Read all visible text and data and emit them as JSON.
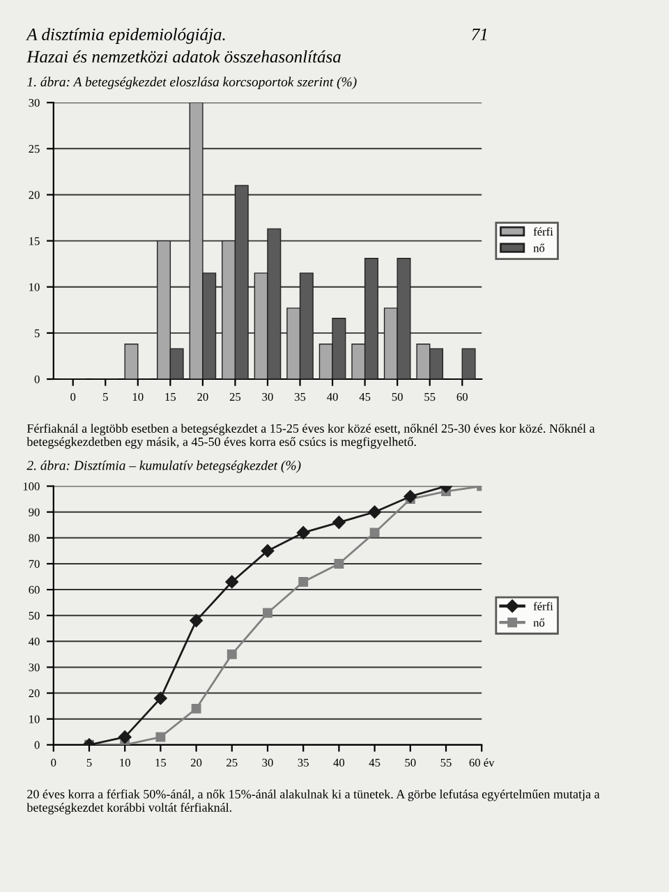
{
  "chart_data": [
    {
      "type": "bar",
      "title": "1. ábra: A betegségkezdet eloszlása korcsoportok szerint (%)",
      "annotations": [
        "A disztímia epidemiológiája.",
        "Hazai és nemzetközi adatok összehasonlítása",
        "71",
        "Férfiaknál a legtöbb esetben a betegségkezdet a 15-25 éves kor közé esett, nőknél 25-30 éves kor közé. Nőknél a betegségkezdetben egy másik, a 45-50 éves korra eső csúcs is megfigyelhető."
      ],
      "categories": [
        "0",
        "5",
        "10",
        "15",
        "20",
        "25",
        "30",
        "35",
        "40",
        "45",
        "50",
        "55",
        "60"
      ],
      "series": [
        {
          "name": "férfi",
          "color": "#a8a8a8",
          "values": [
            null,
            null,
            3.8,
            15,
            30,
            15,
            11.5,
            7.7,
            3.8,
            3.8,
            7.7,
            3.8,
            null
          ]
        },
        {
          "name": "nő",
          "color": "#5a5a5a",
          "values": [
            null,
            null,
            null,
            3.3,
            11.5,
            21,
            16.3,
            11.5,
            6.6,
            13.1,
            13.1,
            3.3,
            3.3
          ]
        }
      ],
      "ylim": [
        0,
        30
      ],
      "yticks": [
        0,
        5,
        10,
        15,
        20,
        25,
        30
      ],
      "grid": "y",
      "legend": "right"
    },
    {
      "type": "line",
      "title": "2. ábra: Disztímia – kumulatív betegségkezdet (%)",
      "annotations": [
        "20 éves korra a férfiak 50%-ánál, a nők 15%-ánál alakulnak ki a tünetek. A görbe lefutása egyértelműen mutatja a betegségkezdet korábbi voltát férfiaknál."
      ],
      "series": [
        {
          "name": "férfi",
          "color": "#1a1a1a",
          "marker": "diamond",
          "x": [
            5,
            10,
            15,
            20,
            25,
            30,
            35,
            40,
            45,
            50,
            55
          ],
          "values": [
            0,
            3,
            18,
            48,
            63,
            75,
            82,
            86,
            90,
            96,
            100
          ]
        },
        {
          "name": "nő",
          "color": "#808080",
          "marker": "square",
          "x": [
            5,
            10,
            15,
            20,
            25,
            30,
            35,
            40,
            45,
            50,
            55,
            60
          ],
          "values": [
            0,
            0,
            3,
            14,
            35,
            51,
            63,
            70,
            82,
            95,
            98,
            100
          ]
        }
      ],
      "xlim": [
        0,
        60
      ],
      "xticks": [
        0,
        5,
        10,
        15,
        20,
        25,
        30,
        35,
        40,
        45,
        50,
        55,
        {
          "value": 60,
          "label": "60 év"
        }
      ],
      "ylim": [
        0,
        100
      ],
      "yticks": [
        0,
        10,
        20,
        30,
        40,
        50,
        60,
        70,
        80,
        90,
        100
      ],
      "grid": "y",
      "legend": "right",
      "line_style": "solid"
    }
  ]
}
